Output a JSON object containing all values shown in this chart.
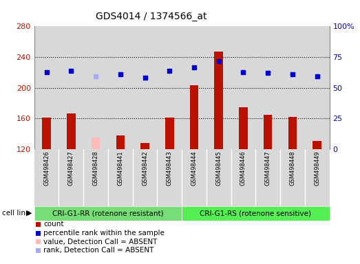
{
  "title": "GDS4014 / 1374566_at",
  "samples": [
    "GSM498426",
    "GSM498427",
    "GSM498428",
    "GSM498441",
    "GSM498442",
    "GSM498443",
    "GSM498444",
    "GSM498445",
    "GSM498446",
    "GSM498447",
    "GSM498448",
    "GSM498449"
  ],
  "counts": [
    161,
    167,
    135,
    138,
    128,
    161,
    203,
    247,
    175,
    165,
    162,
    131
  ],
  "counts_absent": [
    false,
    false,
    true,
    false,
    false,
    false,
    false,
    false,
    false,
    false,
    false,
    false
  ],
  "ranks": [
    220,
    222,
    215,
    218,
    213,
    222,
    227,
    235,
    220,
    219,
    218,
    215
  ],
  "ranks_absent": [
    false,
    false,
    true,
    false,
    false,
    false,
    false,
    false,
    false,
    false,
    false,
    false
  ],
  "ylim_left": [
    120,
    280
  ],
  "ylim_right": [
    0,
    100
  ],
  "yticks_left": [
    120,
    160,
    200,
    240,
    280
  ],
  "yticks_right": [
    0,
    25,
    50,
    75,
    100
  ],
  "ytick_labels_right": [
    "0",
    "25",
    "50",
    "75",
    "100%"
  ],
  "group1_label": "CRI-G1-RR (rotenone resistant)",
  "group2_label": "CRI-G1-RS (rotenone sensitive)",
  "group1_indices": [
    0,
    1,
    2,
    3,
    4,
    5
  ],
  "group2_indices": [
    6,
    7,
    8,
    9,
    10,
    11
  ],
  "col_bg_color": "#d8d8d8",
  "plot_bg_color": "#ffffff",
  "group1_footer_color": "#77dd77",
  "group2_footer_color": "#55ee55",
  "bar_color_present": "#bb1100",
  "bar_color_absent": "#ffbbbb",
  "rank_color_present": "#0000cc",
  "rank_color_absent": "#aaaaee",
  "cell_line_label": "cell line",
  "legend_items": [
    {
      "label": "count",
      "color": "#bb1100"
    },
    {
      "label": "percentile rank within the sample",
      "color": "#0000cc"
    },
    {
      "label": "value, Detection Call = ABSENT",
      "color": "#ffbbbb"
    },
    {
      "label": "rank, Detection Call = ABSENT",
      "color": "#aaaaee"
    }
  ]
}
